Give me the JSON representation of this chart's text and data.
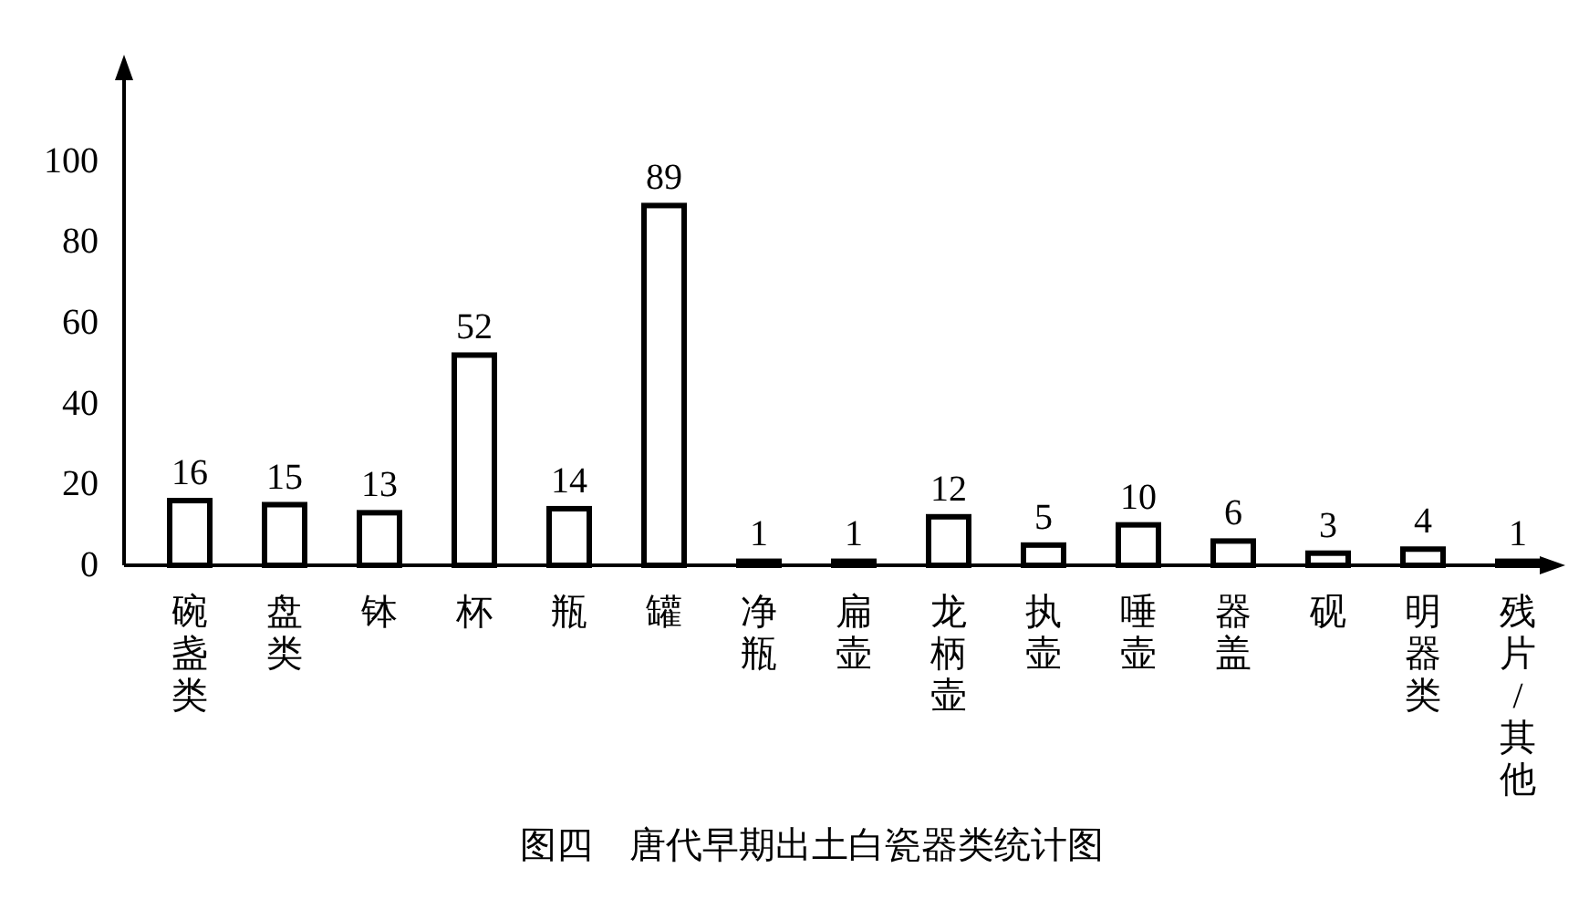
{
  "chart_data": {
    "type": "bar",
    "title": "图四　唐代早期出土白瓷器类统计图",
    "categories": [
      "碗盏类",
      "盘类",
      "钵",
      "杯",
      "瓶",
      "罐",
      "净瓶",
      "扁壶",
      "龙柄壶",
      "执壶",
      "唾壶",
      "器盖",
      "砚",
      "明器类",
      "残片/其他"
    ],
    "values": [
      16,
      15,
      13,
      52,
      14,
      89,
      1,
      1,
      12,
      5,
      10,
      6,
      3,
      4,
      1
    ],
    "color": "#ffffff",
    "ylim": [
      0,
      120
    ],
    "yticks": [
      0,
      20,
      40,
      60,
      80,
      100
    ],
    "data_labels": true
  }
}
